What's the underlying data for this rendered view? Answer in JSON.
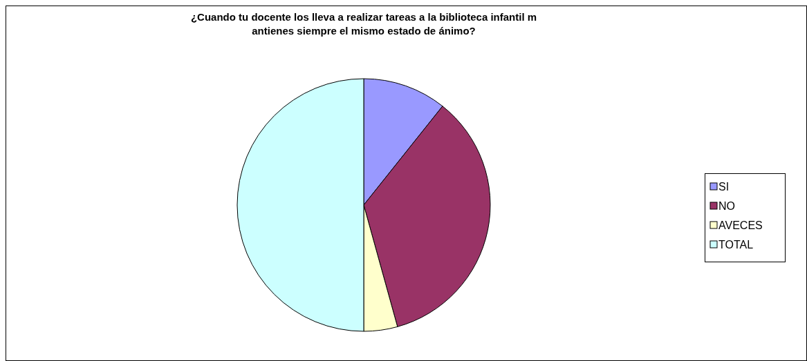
{
  "chart_data": {
    "type": "pie",
    "title": "¿Cuando tu docente los lleva a realizar tareas a la biblioteca infantil m\nantienes siempre el mismo estado de ánimo?",
    "categories": [
      "SI",
      "NO",
      "AVECES",
      "TOTAL"
    ],
    "values": [
      10.7,
      35,
      4.3,
      50
    ],
    "colors": [
      "#9999ff",
      "#993366",
      "#ffffcc",
      "#ccffff"
    ],
    "legend": "right"
  }
}
